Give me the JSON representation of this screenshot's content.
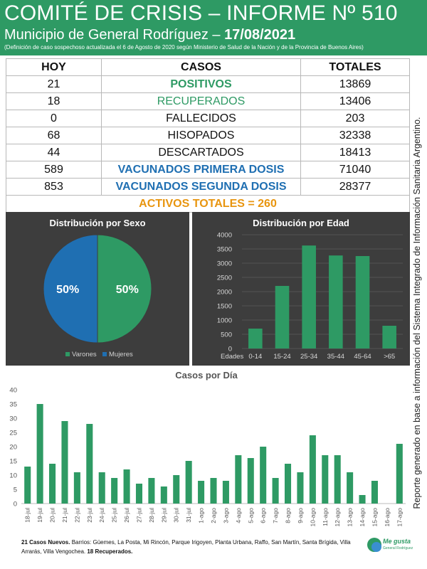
{
  "header": {
    "title": "COMITÉ DE CRISIS – INFORME Nº 510",
    "subtitle_prefix": "Municipio de General Rodríguez – ",
    "subtitle_date": "17/08/2021",
    "note": "(Definición de caso sospechoso actualizada el 6 de Agosto de 2020 según Ministerio de Salud de la Nación y de la Provincia de Buenos Aires)"
  },
  "side_note": "Reporte generado en base a información del Sistema Integrado de Información Sanitaria Argentino.",
  "table": {
    "headers": [
      "HOY",
      "CASOS",
      "TOTALES"
    ],
    "rows": [
      {
        "hoy": "21",
        "casos": "POSITIVOS",
        "totales": "13869",
        "color": "#2e9a64",
        "bold": true
      },
      {
        "hoy": "18",
        "casos": "RECUPERADOS",
        "totales": "13406",
        "color": "#2e9a64",
        "bold": false
      },
      {
        "hoy": "0",
        "casos": "FALLECIDOS",
        "totales": "203",
        "color": "#111111",
        "bold": false
      },
      {
        "hoy": "68",
        "casos": "HISOPADOS",
        "totales": "32338",
        "color": "#111111",
        "bold": false
      },
      {
        "hoy": "44",
        "casos": "DESCARTADOS",
        "totales": "18413",
        "color": "#111111",
        "bold": false
      },
      {
        "hoy": "589",
        "casos": "VACUNADOS PRIMERA DOSIS",
        "totales": "71040",
        "color": "#1f6fb2",
        "bold": true
      },
      {
        "hoy": "853",
        "casos": "VACUNADOS SEGUNDA DOSIS",
        "totales": "28377",
        "color": "#1f6fb2",
        "bold": true
      }
    ],
    "activos": "ACTIVOS TOTALES = 260"
  },
  "chart_data": [
    {
      "type": "pie",
      "title": "Distribución  por Sexo",
      "categories": [
        "Varones",
        "Mujeres"
      ],
      "values": [
        50,
        50
      ],
      "labels": [
        "50%",
        "50%"
      ],
      "colors": [
        "#2e9a64",
        "#1f6fb2"
      ],
      "legend": "bottom"
    },
    {
      "type": "bar",
      "title": "Distribución  por Edad",
      "xlabel": "Edades",
      "categories": [
        "0-14",
        "15-24",
        "25-34",
        "35-44",
        "45-64",
        ">65"
      ],
      "values": [
        700,
        2200,
        3620,
        3270,
        3250,
        800
      ],
      "ylim": [
        0,
        4000
      ],
      "yticks": [
        0,
        500,
        1000,
        1500,
        2000,
        2500,
        3000,
        3500,
        4000
      ],
      "color": "#2e9a64",
      "grid": true
    },
    {
      "type": "bar",
      "title": "Casos por Día",
      "categories": [
        "18-jul",
        "19-jul",
        "20-jul",
        "21-jul",
        "22-jul",
        "23-jul",
        "24-jul",
        "25-jul",
        "26-jul",
        "27-jul",
        "28-jul",
        "29-jul",
        "30-jul",
        "31-jul",
        "1-ago",
        "2-ago",
        "3-ago",
        "4-ago",
        "5-ago",
        "6-ago",
        "7-ago",
        "8-ago",
        "9-ago",
        "10-ago",
        "11-ago",
        "12-ago",
        "13-ago",
        "14-ago",
        "15-ago",
        "16-ago",
        "17-ago"
      ],
      "values": [
        13,
        35,
        14,
        29,
        11,
        28,
        11,
        9,
        12,
        7,
        9,
        6,
        10,
        15,
        8,
        9,
        8,
        17,
        16,
        20,
        9,
        14,
        11,
        24,
        17,
        17,
        11,
        3,
        8,
        0,
        21
      ],
      "ylim": [
        0,
        40
      ],
      "yticks": [
        0,
        5,
        10,
        15,
        20,
        25,
        30,
        35,
        40
      ],
      "color": "#2e9a64",
      "grid": false
    }
  ],
  "footer": {
    "bold1": "21 Casos Nuevos.",
    "text": " Barrios: Güemes, La Posta, Mi Rincón, Parque Irigoyen, Planta Urbana, Raffo, San Martín, Santa Brígida, Villa Arrarás, Villa Vengochea. ",
    "bold2": "18 Recuperados."
  },
  "logo": {
    "line1": "Me gusta",
    "line2": "General Rodríguez"
  }
}
